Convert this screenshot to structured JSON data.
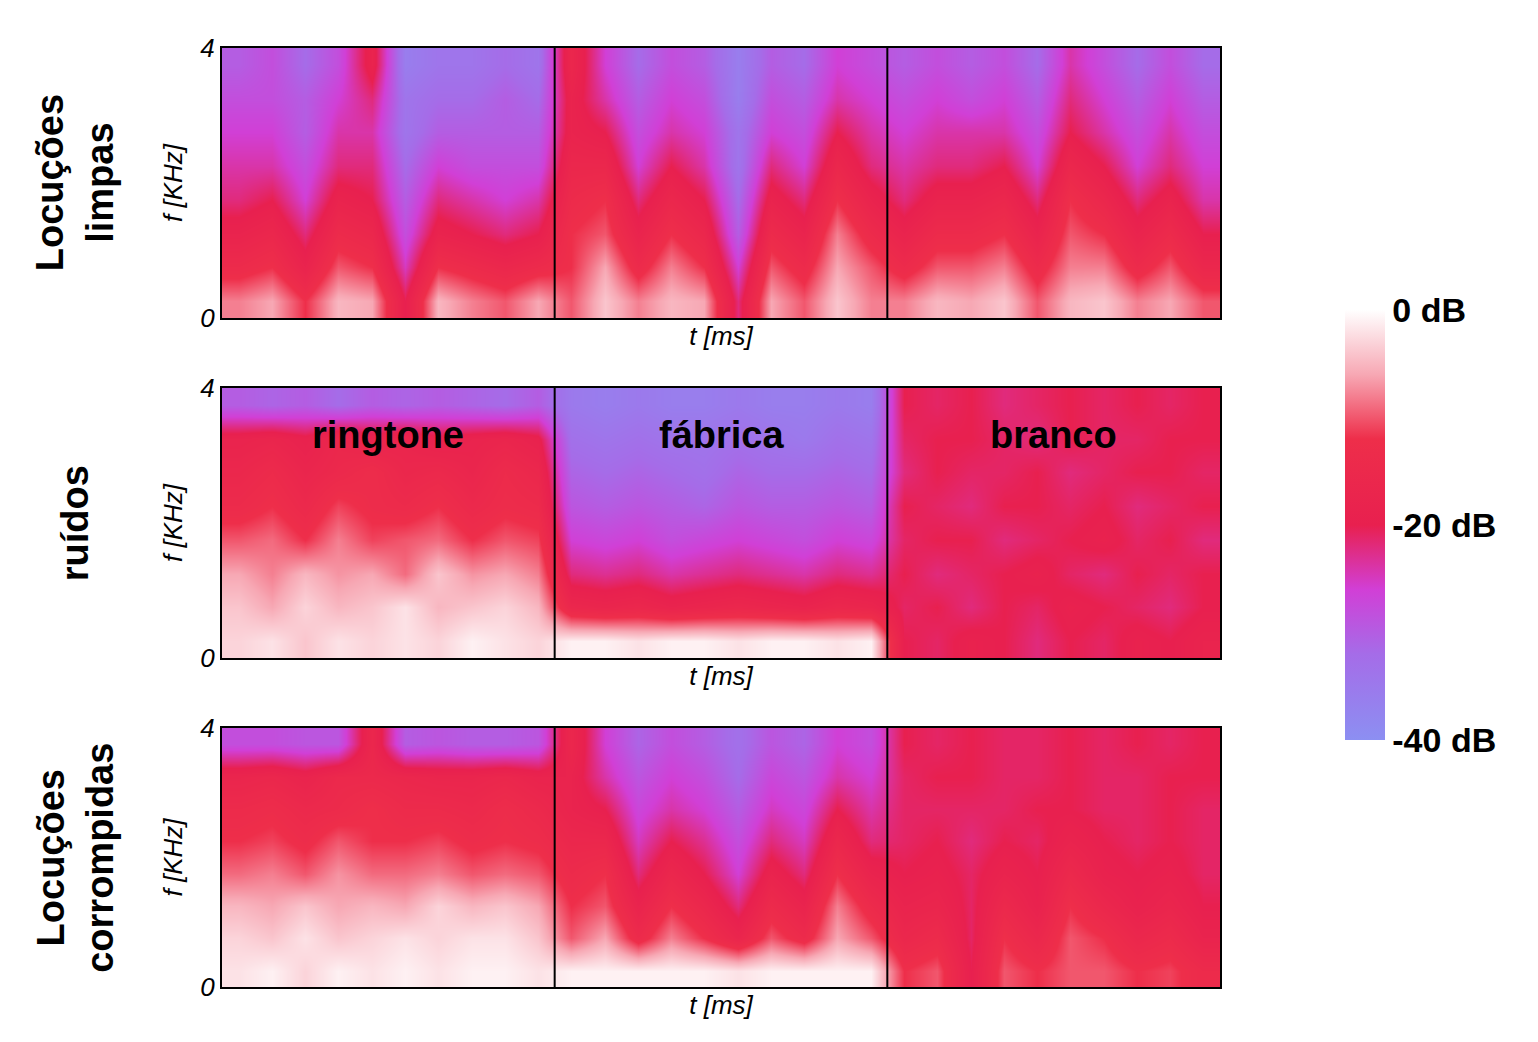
{
  "colorbar": {
    "zlim": [
      -40,
      0
    ],
    "zticks": [
      {
        "value": 0,
        "label": "0 dB"
      },
      {
        "value": -20,
        "label": "-20 dB"
      },
      {
        "value": -40,
        "label": "-40 dB"
      }
    ]
  },
  "chart_data": [
    {
      "type": "heatmap",
      "row_label": "Locuções limpas",
      "xlabel": "t [ms]",
      "ylabel": "f [KHz]",
      "xlim": [
        0,
        30
      ],
      "ylim": [
        0,
        4
      ],
      "yticks": [
        0,
        4
      ],
      "tick_labels": "y",
      "segments": [
        [
          0,
          10
        ],
        [
          10,
          20
        ],
        [
          20,
          30
        ]
      ],
      "x": [
        0.5,
        1.5,
        2.5,
        3.5,
        4.5,
        5.5,
        6.5,
        7.5,
        8.5,
        9.5,
        10.5,
        11.5,
        12.5,
        13.5,
        14.5,
        15.5,
        16.5,
        17.5,
        18.5,
        19.5,
        20.5,
        21.5,
        22.5,
        23.5,
        24.5,
        25.5,
        26.5,
        27.5,
        28.5,
        29.5
      ],
      "y": [
        0.25,
        0.75,
        1.25,
        1.75,
        2.25,
        2.75,
        3.25,
        3.75
      ],
      "z": [
        [
          -8,
          -6,
          -12,
          -5,
          -6,
          -20,
          -5,
          -8,
          -10,
          -6,
          -10,
          -4,
          -8,
          -5,
          -6,
          -22,
          -6,
          -10,
          -4,
          -8,
          -8,
          -5,
          -6,
          -4,
          -10,
          -5,
          -4,
          -8,
          -6,
          -10
        ],
        [
          -14,
          -12,
          -18,
          -10,
          -12,
          -25,
          -12,
          -14,
          -16,
          -14,
          -12,
          -6,
          -14,
          -8,
          -12,
          -26,
          -10,
          -14,
          -6,
          -10,
          -14,
          -10,
          -10,
          -8,
          -14,
          -8,
          -8,
          -14,
          -10,
          -16
        ],
        [
          -18,
          -16,
          -22,
          -14,
          -16,
          -28,
          -18,
          -20,
          -22,
          -20,
          -12,
          -10,
          -18,
          -12,
          -16,
          -30,
          -14,
          -18,
          -8,
          -14,
          -18,
          -14,
          -14,
          -12,
          -18,
          -10,
          -12,
          -18,
          -14,
          -20
        ],
        [
          -22,
          -20,
          -26,
          -18,
          -20,
          -30,
          -22,
          -24,
          -26,
          -24,
          -14,
          -12,
          -22,
          -16,
          -20,
          -32,
          -18,
          -22,
          -12,
          -18,
          -22,
          -18,
          -18,
          -16,
          -22,
          -12,
          -16,
          -22,
          -18,
          -24
        ],
        [
          -24,
          -24,
          -28,
          -22,
          -22,
          -32,
          -26,
          -28,
          -28,
          -28,
          -16,
          -16,
          -26,
          -20,
          -24,
          -34,
          -22,
          -26,
          -16,
          -22,
          -24,
          -22,
          -22,
          -20,
          -26,
          -16,
          -20,
          -26,
          -22,
          -26
        ],
        [
          -26,
          -26,
          -30,
          -24,
          -24,
          -34,
          -30,
          -30,
          -30,
          -30,
          -18,
          -20,
          -28,
          -24,
          -26,
          -34,
          -26,
          -28,
          -20,
          -24,
          -26,
          -24,
          -24,
          -24,
          -28,
          -20,
          -24,
          -28,
          -24,
          -28
        ],
        [
          -28,
          -28,
          -30,
          -26,
          -22,
          -34,
          -32,
          -32,
          -30,
          -32,
          -18,
          -24,
          -30,
          -26,
          -28,
          -36,
          -28,
          -30,
          -24,
          -26,
          -28,
          -26,
          -28,
          -26,
          -30,
          -22,
          -26,
          -30,
          -26,
          -30
        ],
        [
          -30,
          -28,
          -32,
          -28,
          -18,
          -36,
          -34,
          -34,
          -32,
          -34,
          -16,
          -26,
          -32,
          -28,
          -30,
          -36,
          -30,
          -32,
          -26,
          -28,
          -30,
          -28,
          -30,
          -28,
          -32,
          -24,
          -28,
          -32,
          -28,
          -32
        ]
      ]
    },
    {
      "type": "heatmap",
      "row_label": "ruídos",
      "xlabel": "t [ms]",
      "ylabel": "f [KHz]",
      "xlim": [
        0,
        30
      ],
      "ylim": [
        0,
        4
      ],
      "yticks": [
        0,
        4
      ],
      "tick_labels": "y",
      "segments": [
        [
          0,
          10
        ],
        [
          10,
          20
        ],
        [
          20,
          30
        ]
      ],
      "annotations": [
        {
          "text": "ringtone",
          "x": 5,
          "y": 3.3
        },
        {
          "text": "fábrica",
          "x": 15,
          "y": 3.3
        },
        {
          "text": "branco",
          "x": 25,
          "y": 3.3
        }
      ],
      "x": [
        0.5,
        1.5,
        2.5,
        3.5,
        4.5,
        5.5,
        6.5,
        7.5,
        8.5,
        9.5,
        10.5,
        11.5,
        12.5,
        13.5,
        14.5,
        15.5,
        16.5,
        17.5,
        18.5,
        19.5,
        20.5,
        21.5,
        22.5,
        23.5,
        24.5,
        25.5,
        26.5,
        27.5,
        28.5,
        29.5
      ],
      "y": [
        0.25,
        0.75,
        1.25,
        1.75,
        2.25,
        2.75,
        3.25,
        3.75
      ],
      "z": [
        [
          -3,
          -2,
          -4,
          -2,
          -3,
          -2,
          -3,
          -1,
          -2,
          -3,
          -1,
          -1,
          -2,
          -1,
          -1,
          -2,
          -1,
          -1,
          -2,
          -1,
          -20,
          -21,
          -19,
          -20,
          -22,
          -20,
          -21,
          -19,
          -20,
          -18
        ],
        [
          -4,
          -6,
          -3,
          -5,
          -4,
          -2,
          -5,
          -4,
          -3,
          -5,
          -16,
          -17,
          -16,
          -18,
          -17,
          -16,
          -17,
          -18,
          -16,
          -17,
          -21,
          -20,
          -22,
          -20,
          -21,
          -19,
          -20,
          -21,
          -22,
          -20
        ],
        [
          -6,
          -8,
          -5,
          -7,
          -6,
          -9,
          -4,
          -7,
          -6,
          -8,
          -22,
          -23,
          -22,
          -24,
          -23,
          -22,
          -23,
          -24,
          -22,
          -23,
          -20,
          -22,
          -21,
          -20,
          -19,
          -21,
          -22,
          -20,
          -21,
          -20
        ],
        [
          -10,
          -9,
          -12,
          -8,
          -11,
          -10,
          -9,
          -12,
          -10,
          -11,
          -26,
          -27,
          -26,
          -28,
          -27,
          -26,
          -27,
          -28,
          -26,
          -27,
          -21,
          -20,
          -20,
          -22,
          -21,
          -20,
          -19,
          -21,
          -20,
          -22
        ],
        [
          -14,
          -12,
          -15,
          -11,
          -13,
          -14,
          -12,
          -15,
          -13,
          -14,
          -29,
          -30,
          -29,
          -30,
          -31,
          -29,
          -30,
          -30,
          -29,
          -30,
          -20,
          -21,
          -22,
          -20,
          -20,
          -21,
          -20,
          -22,
          -21,
          -20
        ],
        [
          -16,
          -14,
          -17,
          -15,
          -13,
          -16,
          -15,
          -17,
          -14,
          -16,
          -31,
          -32,
          -31,
          -32,
          -33,
          -31,
          -32,
          -32,
          -31,
          -32,
          -22,
          -20,
          -21,
          -21,
          -20,
          -22,
          -21,
          -20,
          -20,
          -21
        ],
        [
          -18,
          -17,
          -19,
          -16,
          -18,
          -17,
          -19,
          -18,
          -17,
          -19,
          -33,
          -34,
          -33,
          -34,
          -34,
          -33,
          -34,
          -35,
          -33,
          -34,
          -21,
          -20,
          -20,
          -21,
          -22,
          -20,
          -21,
          -21,
          -20,
          -20
        ],
        [
          -30,
          -31,
          -30,
          -32,
          -30,
          -31,
          -30,
          -31,
          -32,
          -30,
          -35,
          -36,
          -35,
          -36,
          -36,
          -35,
          -36,
          -36,
          -35,
          -36,
          -20,
          -21,
          -20,
          -22,
          -21,
          -20,
          -21,
          -20,
          -21,
          -20
        ]
      ]
    },
    {
      "type": "heatmap",
      "row_label": "Locuções corrompidas",
      "xlabel": "t [ms]",
      "ylabel": "f [KHz]",
      "xlim": [
        0,
        30
      ],
      "ylim": [
        0,
        4
      ],
      "yticks": [
        0,
        4
      ],
      "tick_labels": "y",
      "segments": [
        [
          0,
          10
        ],
        [
          10,
          20
        ],
        [
          20,
          30
        ]
      ],
      "x": [
        0.5,
        1.5,
        2.5,
        3.5,
        4.5,
        5.5,
        6.5,
        7.5,
        8.5,
        9.5,
        10.5,
        11.5,
        12.5,
        13.5,
        14.5,
        15.5,
        16.5,
        17.5,
        18.5,
        19.5,
        20.5,
        21.5,
        22.5,
        23.5,
        24.5,
        25.5,
        26.5,
        27.5,
        28.5,
        29.5
      ],
      "y": [
        0.25,
        0.75,
        1.25,
        1.75,
        2.25,
        2.75,
        3.25,
        3.75
      ],
      "z": [
        [
          -2,
          -1,
          -3,
          -1,
          -2,
          -1,
          -2,
          -1,
          -1,
          -2,
          -1,
          -1,
          -1,
          -1,
          -1,
          -2,
          -1,
          -1,
          -1,
          -1,
          -12,
          -10,
          -20,
          -10,
          -12,
          -10,
          -10,
          -12,
          -11,
          -14
        ],
        [
          -3,
          -4,
          -2,
          -4,
          -3,
          -2,
          -3,
          -2,
          -2,
          -4,
          -10,
          -6,
          -14,
          -8,
          -12,
          -17,
          -10,
          -14,
          -6,
          -10,
          -16,
          -14,
          -21,
          -12,
          -16,
          -10,
          -12,
          -16,
          -14,
          -18
        ],
        [
          -5,
          -6,
          -4,
          -6,
          -5,
          -6,
          -3,
          -5,
          -4,
          -6,
          -12,
          -10,
          -18,
          -12,
          -16,
          -22,
          -14,
          -18,
          -8,
          -14,
          -18,
          -17,
          -21,
          -15,
          -19,
          -12,
          -16,
          -19,
          -17,
          -20
        ],
        [
          -9,
          -8,
          -10,
          -7,
          -9,
          -9,
          -8,
          -10,
          -9,
          -10,
          -14,
          -12,
          -22,
          -16,
          -20,
          -26,
          -18,
          -22,
          -12,
          -18,
          -20,
          -19,
          -21,
          -18,
          -20,
          -15,
          -19,
          -20,
          -19,
          -21
        ],
        [
          -12,
          -11,
          -13,
          -10,
          -12,
          -12,
          -11,
          -13,
          -12,
          -13,
          -16,
          -16,
          -25,
          -20,
          -23,
          -28,
          -22,
          -25,
          -16,
          -22,
          -21,
          -20,
          -22,
          -20,
          -21,
          -18,
          -20,
          -21,
          -20,
          -21
        ],
        [
          -14,
          -13,
          -15,
          -14,
          -12,
          -14,
          -14,
          -15,
          -13,
          -15,
          -18,
          -20,
          -27,
          -24,
          -26,
          -30,
          -25,
          -27,
          -20,
          -24,
          -21,
          -21,
          -21,
          -21,
          -20,
          -20,
          -21,
          -21,
          -20,
          -21
        ],
        [
          -17,
          -16,
          -18,
          -15,
          -15,
          -16,
          -17,
          -17,
          -16,
          -18,
          -18,
          -24,
          -29,
          -26,
          -28,
          -32,
          -27,
          -29,
          -24,
          -26,
          -21,
          -20,
          -20,
          -21,
          -21,
          -20,
          -21,
          -21,
          -20,
          -20
        ],
        [
          -28,
          -28,
          -29,
          -29,
          -16,
          -30,
          -29,
          -30,
          -30,
          -29,
          -16,
          -26,
          -31,
          -28,
          -30,
          -33,
          -29,
          -31,
          -26,
          -28,
          -20,
          -21,
          -20,
          -21,
          -21,
          -20,
          -21,
          -20,
          -21,
          -20
        ]
      ]
    }
  ]
}
